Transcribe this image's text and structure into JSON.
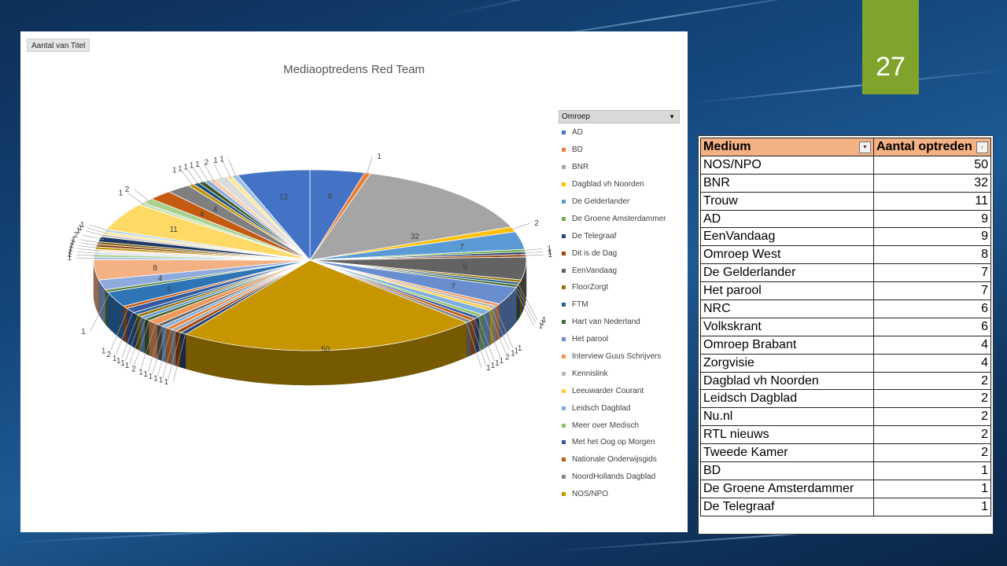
{
  "slide": {
    "number": "27",
    "accent": "#7fa32b"
  },
  "pivot": {
    "field_button": "Aantal van Titel",
    "legend_field": "Omroep"
  },
  "chart_data": {
    "type": "pie",
    "title": "Mediaoptredens Red Team",
    "slices": [
      {
        "label": "AD",
        "value": 9,
        "color": "#4472c4"
      },
      {
        "label": "BD",
        "value": 1,
        "color": "#ed7d31"
      },
      {
        "label": "BNR",
        "value": 32,
        "color": "#a5a5a5"
      },
      {
        "label": "Dagblad vh Noorden",
        "value": 2,
        "color": "#ffc000"
      },
      {
        "label": "De Gelderlander",
        "value": 7,
        "color": "#5b9bd5"
      },
      {
        "label": "De Groene Amsterdammer",
        "value": 1,
        "color": "#70ad47"
      },
      {
        "label": "De Telegraaf",
        "value": 1,
        "color": "#264478"
      },
      {
        "label": "Dit is de Dag",
        "value": 1,
        "color": "#9e480e"
      },
      {
        "label": "EenVandaag",
        "value": 9,
        "color": "#636363"
      },
      {
        "label": "FloorZorgt",
        "value": 1,
        "color": "#997300"
      },
      {
        "label": "FTM",
        "value": 1,
        "color": "#255e91"
      },
      {
        "label": "Hart van Nederland",
        "value": 1,
        "color": "#43682b"
      },
      {
        "label": "Het parool",
        "value": 7,
        "color": "#698ed0"
      },
      {
        "label": "Interview Guus Schrijvers",
        "value": 1,
        "color": "#f1975a"
      },
      {
        "label": "Kennislink",
        "value": 1,
        "color": "#b7b7b7"
      },
      {
        "label": "Leeuwarder Courant",
        "value": 1,
        "color": "#ffcd33"
      },
      {
        "label": "Leidsch Dagblad",
        "value": 2,
        "color": "#7cafdd"
      },
      {
        "label": "Meer over Medisch",
        "value": 1,
        "color": "#8cc168"
      },
      {
        "label": "Met het Oog op Morgen",
        "value": 1,
        "color": "#335aa1"
      },
      {
        "label": "Nationale Onderwijsgids",
        "value": 1,
        "color": "#c55a11"
      },
      {
        "label": "NoordHollands Dagblad",
        "value": 1,
        "color": "#848484"
      },
      {
        "label": "NOS/NPO",
        "value": 50,
        "color": "#c69500"
      },
      {
        "label": "",
        "value": 1,
        "color": "#264478"
      },
      {
        "label": "",
        "value": 1,
        "color": "#9e480e"
      },
      {
        "label": "",
        "value": 1,
        "color": "#a5a5a5"
      },
      {
        "label": "",
        "value": 1,
        "color": "#ed7d31"
      },
      {
        "label": "",
        "value": 1,
        "color": "#7cafdd"
      },
      {
        "label": "",
        "value": 1,
        "color": "#636363"
      },
      {
        "label": "",
        "value": 2,
        "color": "#f1975a"
      },
      {
        "label": "",
        "value": 1,
        "color": "#43682b"
      },
      {
        "label": "",
        "value": 1,
        "color": "#5b9bd5"
      },
      {
        "label": "",
        "value": 1,
        "color": "#997300"
      },
      {
        "label": "",
        "value": 1,
        "color": "#255e91"
      },
      {
        "label": "",
        "value": 2,
        "color": "#335aa1"
      },
      {
        "label": "",
        "value": 1,
        "color": "#c55a11"
      },
      {
        "label": "",
        "value": 6,
        "color": "#2e75b6"
      },
      {
        "label": "",
        "value": 1,
        "color": "#548235"
      },
      {
        "label": "",
        "value": 4,
        "color": "#8faadc"
      },
      {
        "label": "",
        "value": 8,
        "color": "#f4b183"
      },
      {
        "label": "",
        "value": 1,
        "color": "#9dc3e6"
      },
      {
        "label": "",
        "value": 1,
        "color": "#a9d18e"
      },
      {
        "label": "",
        "value": 1,
        "color": "#dae3f3"
      },
      {
        "label": "",
        "value": 1,
        "color": "#fbe5d6"
      },
      {
        "label": "",
        "value": 1,
        "color": "#bf9000"
      },
      {
        "label": "",
        "value": 1,
        "color": "#843c0c"
      },
      {
        "label": "",
        "value": 1,
        "color": "#7f6000"
      },
      {
        "label": "",
        "value": 2,
        "color": "#203864"
      },
      {
        "label": "",
        "value": 1,
        "color": "#c9c9c9"
      },
      {
        "label": "",
        "value": 1,
        "color": "#ffe699"
      },
      {
        "label": "",
        "value": 1,
        "color": "#bdd7ee"
      },
      {
        "label": "",
        "value": 11,
        "color": "#ffd966"
      },
      {
        "label": "",
        "value": 1,
        "color": "#c5e0b4"
      },
      {
        "label": "",
        "value": 2,
        "color": "#a9d18e"
      },
      {
        "label": "",
        "value": 4,
        "color": "#c55a11"
      },
      {
        "label": "",
        "value": 4,
        "color": "#7f7f7f"
      },
      {
        "label": "",
        "value": 1,
        "color": "#bf9000"
      },
      {
        "label": "",
        "value": 1,
        "color": "#1f4e79"
      },
      {
        "label": "",
        "value": 1,
        "color": "#385723"
      },
      {
        "label": "",
        "value": 1,
        "color": "#8faadc"
      },
      {
        "label": "",
        "value": 1,
        "color": "#f8cbad"
      },
      {
        "label": "",
        "value": 2,
        "color": "#dbdbdb"
      },
      {
        "label": "",
        "value": 1,
        "color": "#ffe699"
      },
      {
        "label": "",
        "value": 1,
        "color": "#9dc3e6"
      },
      {
        "label": "",
        "value": 12,
        "color": "#4472c4"
      }
    ]
  },
  "table": {
    "headers": [
      "Medium",
      "Aantal optreden"
    ],
    "rows": [
      [
        "NOS/NPO",
        "50"
      ],
      [
        "BNR",
        "32"
      ],
      [
        "Trouw",
        "11"
      ],
      [
        "AD",
        "9"
      ],
      [
        "EenVandaag",
        "9"
      ],
      [
        "Omroep West",
        "8"
      ],
      [
        "De Gelderlander",
        "7"
      ],
      [
        "Het parool",
        "7"
      ],
      [
        "NRC",
        "6"
      ],
      [
        "Volkskrant",
        "6"
      ],
      [
        "Omroep Brabant",
        "4"
      ],
      [
        "Zorgvisie",
        "4"
      ],
      [
        "Dagblad vh Noorden",
        "2"
      ],
      [
        "Leidsch Dagblad",
        "2"
      ],
      [
        "Nu.nl",
        "2"
      ],
      [
        "RTL nieuws",
        "2"
      ],
      [
        "Tweede Kamer",
        "2"
      ],
      [
        "BD",
        "1"
      ],
      [
        "De Groene Amsterdammer",
        "1"
      ],
      [
        "De Telegraaf",
        "1"
      ]
    ]
  }
}
